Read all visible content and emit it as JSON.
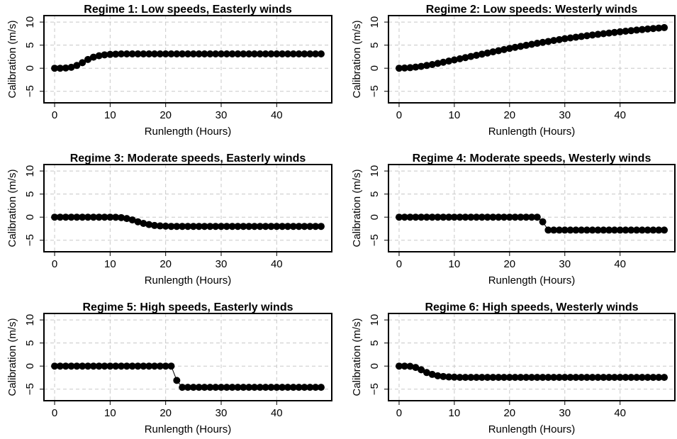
{
  "chart_data": [
    {
      "type": "line",
      "title": "Regime 1: Low speeds, Easterly winds",
      "xlabel": "Runlength (Hours)",
      "ylabel": "Calibration (m/s)",
      "color": "#000000",
      "grid": true,
      "x": [
        0,
        1,
        2,
        3,
        4,
        5,
        6,
        7,
        8,
        9,
        10,
        11,
        12,
        13,
        14,
        15,
        16,
        17,
        18,
        19,
        20,
        21,
        22,
        23,
        24,
        25,
        26,
        27,
        28,
        29,
        30,
        31,
        32,
        33,
        34,
        35,
        36,
        37,
        38,
        39,
        40,
        41,
        42,
        43,
        44,
        45,
        46,
        47,
        48
      ],
      "values": [
        0,
        0,
        0.05,
        0.2,
        0.6,
        1.2,
        1.9,
        2.4,
        2.7,
        2.9,
        3.0,
        3.05,
        3.1,
        3.1,
        3.1,
        3.1,
        3.1,
        3.1,
        3.1,
        3.1,
        3.1,
        3.1,
        3.1,
        3.1,
        3.1,
        3.1,
        3.1,
        3.1,
        3.1,
        3.1,
        3.1,
        3.1,
        3.1,
        3.1,
        3.1,
        3.1,
        3.1,
        3.1,
        3.1,
        3.1,
        3.1,
        3.1,
        3.1,
        3.1,
        3.1,
        3.1,
        3.1,
        3.1,
        3.1
      ],
      "xlim": [
        -1.92,
        49.92
      ],
      "xticks": [
        0,
        10,
        20,
        30,
        40
      ],
      "ylim": [
        -7.5,
        11.4
      ],
      "yticks": [
        {
          "value": -5,
          "label": "−5"
        },
        0,
        5,
        10
      ]
    },
    {
      "type": "line",
      "title": "Regime 2: Low speeds: Westerly winds",
      "xlabel": "Runlength (Hours)",
      "ylabel": "Calibration (m/s)",
      "color": "#000000",
      "grid": true,
      "x": [
        0,
        1,
        2,
        3,
        4,
        5,
        6,
        7,
        8,
        9,
        10,
        11,
        12,
        13,
        14,
        15,
        16,
        17,
        18,
        19,
        20,
        21,
        22,
        23,
        24,
        25,
        26,
        27,
        28,
        29,
        30,
        31,
        32,
        33,
        34,
        35,
        36,
        37,
        38,
        39,
        40,
        41,
        42,
        43,
        44,
        45,
        46,
        47,
        48
      ],
      "values": [
        0,
        0.05,
        0.12,
        0.25,
        0.4,
        0.6,
        0.8,
        1.05,
        1.3,
        1.55,
        1.8,
        2.05,
        2.3,
        2.55,
        2.8,
        3.05,
        3.3,
        3.55,
        3.8,
        4.05,
        4.3,
        4.52,
        4.74,
        4.96,
        5.18,
        5.4,
        5.6,
        5.8,
        6.0,
        6.2,
        6.4,
        6.56,
        6.72,
        6.88,
        7.04,
        7.2,
        7.34,
        7.48,
        7.62,
        7.76,
        7.9,
        8.02,
        8.14,
        8.26,
        8.38,
        8.5,
        8.6,
        8.7,
        8.8
      ],
      "xlim": [
        -1.92,
        49.92
      ],
      "xticks": [
        0,
        10,
        20,
        30,
        40
      ],
      "ylim": [
        -7.5,
        11.4
      ],
      "yticks": [
        {
          "value": -5,
          "label": "−5"
        },
        0,
        5,
        10
      ]
    },
    {
      "type": "line",
      "title": "Regime 3: Moderate speeds, Easterly winds",
      "xlabel": "Runlength (Hours)",
      "ylabel": "Calibration (m/s)",
      "color": "#000000",
      "grid": true,
      "x": [
        0,
        1,
        2,
        3,
        4,
        5,
        6,
        7,
        8,
        9,
        10,
        11,
        12,
        13,
        14,
        15,
        16,
        17,
        18,
        19,
        20,
        21,
        22,
        23,
        24,
        25,
        26,
        27,
        28,
        29,
        30,
        31,
        32,
        33,
        34,
        35,
        36,
        37,
        38,
        39,
        40,
        41,
        42,
        43,
        44,
        45,
        46,
        47,
        48
      ],
      "values": [
        0,
        0,
        0,
        0,
        0,
        0,
        0,
        0,
        0,
        0,
        0,
        -0.02,
        -0.1,
        -0.3,
        -0.6,
        -1.0,
        -1.35,
        -1.6,
        -1.8,
        -1.9,
        -1.95,
        -2,
        -2,
        -2,
        -2,
        -2,
        -2,
        -2,
        -2,
        -2,
        -2,
        -2,
        -2,
        -2,
        -2,
        -2,
        -2,
        -2,
        -2,
        -2,
        -2,
        -2,
        -2,
        -2,
        -2,
        -2,
        -2,
        -2,
        -2
      ],
      "xlim": [
        -1.92,
        49.92
      ],
      "xticks": [
        0,
        10,
        20,
        30,
        40
      ],
      "ylim": [
        -7.5,
        11.4
      ],
      "yticks": [
        {
          "value": -5,
          "label": "−5"
        },
        0,
        5,
        10
      ]
    },
    {
      "type": "line",
      "title": "Regime 4: Moderate speeds, Westerly winds",
      "xlabel": "Runlength (Hours)",
      "ylabel": "Calibration (m/s)",
      "color": "#000000",
      "grid": true,
      "x": [
        0,
        1,
        2,
        3,
        4,
        5,
        6,
        7,
        8,
        9,
        10,
        11,
        12,
        13,
        14,
        15,
        16,
        17,
        18,
        19,
        20,
        21,
        22,
        23,
        24,
        25,
        26,
        27,
        28,
        29,
        30,
        31,
        32,
        33,
        34,
        35,
        36,
        37,
        38,
        39,
        40,
        41,
        42,
        43,
        44,
        45,
        46,
        47,
        48
      ],
      "values": [
        0,
        0,
        0,
        0,
        0,
        0,
        0,
        0,
        0,
        0,
        0,
        0,
        0,
        0,
        0,
        0,
        0,
        0,
        0,
        0,
        0,
        0,
        0,
        0,
        0,
        0,
        -1.0,
        -2.8,
        -2.8,
        -2.8,
        -2.8,
        -2.8,
        -2.8,
        -2.8,
        -2.8,
        -2.8,
        -2.8,
        -2.8,
        -2.8,
        -2.8,
        -2.8,
        -2.8,
        -2.8,
        -2.8,
        -2.8,
        -2.8,
        -2.8,
        -2.8,
        -2.8
      ],
      "xlim": [
        -1.92,
        49.92
      ],
      "xticks": [
        0,
        10,
        20,
        30,
        40
      ],
      "ylim": [
        -7.5,
        11.4
      ],
      "yticks": [
        {
          "value": -5,
          "label": "−5"
        },
        0,
        5,
        10
      ]
    },
    {
      "type": "line",
      "title": "Regime 5: High speeds, Easterly winds",
      "xlabel": "Runlength (Hours)",
      "ylabel": "Calibration (m/s)",
      "color": "#000000",
      "grid": true,
      "x": [
        0,
        1,
        2,
        3,
        4,
        5,
        6,
        7,
        8,
        9,
        10,
        11,
        12,
        13,
        14,
        15,
        16,
        17,
        18,
        19,
        20,
        21,
        22,
        23,
        24,
        25,
        26,
        27,
        28,
        29,
        30,
        31,
        32,
        33,
        34,
        35,
        36,
        37,
        38,
        39,
        40,
        41,
        42,
        43,
        44,
        45,
        46,
        47,
        48
      ],
      "values": [
        0,
        0,
        0,
        0,
        0,
        0,
        0,
        0,
        0,
        0,
        0,
        0,
        0,
        0,
        0,
        0,
        0,
        0,
        0,
        0,
        0,
        0,
        -3.1,
        -4.6,
        -4.6,
        -4.6,
        -4.6,
        -4.6,
        -4.6,
        -4.6,
        -4.6,
        -4.6,
        -4.6,
        -4.6,
        -4.6,
        -4.6,
        -4.6,
        -4.6,
        -4.6,
        -4.6,
        -4.6,
        -4.6,
        -4.6,
        -4.6,
        -4.6,
        -4.6,
        -4.6,
        -4.6,
        -4.6
      ],
      "xlim": [
        -1.92,
        49.92
      ],
      "xticks": [
        0,
        10,
        20,
        30,
        40
      ],
      "ylim": [
        -7.5,
        11.4
      ],
      "yticks": [
        {
          "value": -5,
          "label": "−5"
        },
        0,
        5,
        10
      ]
    },
    {
      "type": "line",
      "title": "Regime 6: High speeds, Westerly winds",
      "xlabel": "Runlength (Hours)",
      "ylabel": "Calibration (m/s)",
      "color": "#000000",
      "grid": true,
      "x": [
        0,
        1,
        2,
        3,
        4,
        5,
        6,
        7,
        8,
        9,
        10,
        11,
        12,
        13,
        14,
        15,
        16,
        17,
        18,
        19,
        20,
        21,
        22,
        23,
        24,
        25,
        26,
        27,
        28,
        29,
        30,
        31,
        32,
        33,
        34,
        35,
        36,
        37,
        38,
        39,
        40,
        41,
        42,
        43,
        44,
        45,
        46,
        47,
        48
      ],
      "values": [
        0,
        0,
        -0.05,
        -0.3,
        -0.8,
        -1.4,
        -1.8,
        -2.1,
        -2.25,
        -2.35,
        -2.4,
        -2.45,
        -2.45,
        -2.45,
        -2.45,
        -2.45,
        -2.45,
        -2.45,
        -2.45,
        -2.45,
        -2.45,
        -2.45,
        -2.45,
        -2.45,
        -2.45,
        -2.45,
        -2.45,
        -2.45,
        -2.45,
        -2.45,
        -2.45,
        -2.45,
        -2.45,
        -2.45,
        -2.45,
        -2.45,
        -2.45,
        -2.45,
        -2.45,
        -2.45,
        -2.45,
        -2.45,
        -2.45,
        -2.45,
        -2.45,
        -2.45,
        -2.45,
        -2.45,
        -2.45
      ],
      "xlim": [
        -1.92,
        49.92
      ],
      "xticks": [
        0,
        10,
        20,
        30,
        40
      ],
      "ylim": [
        -7.5,
        11.4
      ],
      "yticks": [
        {
          "value": -5,
          "label": "−5"
        },
        0,
        5,
        10
      ]
    }
  ]
}
